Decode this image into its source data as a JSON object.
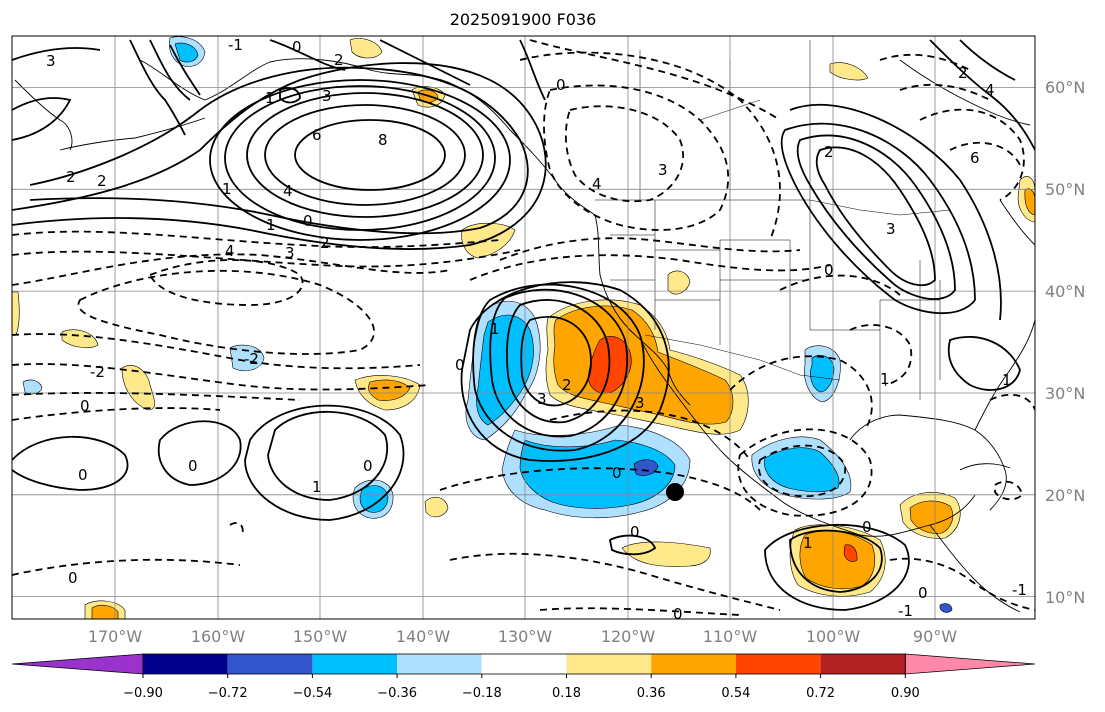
{
  "title": "2025091900 F036",
  "lat_labels": [
    "60°N",
    "50°N",
    "40°N",
    "30°N",
    "20°N",
    "10°N"
  ],
  "lon_labels": [
    "170°W",
    "160°W",
    "150°W",
    "140°W",
    "130°W",
    "120°W",
    "110°W",
    "100°W",
    "90°W"
  ],
  "colorbar": {
    "colors": [
      "#9933cc",
      "#00008b",
      "#3355cc",
      "#00bfff",
      "#b0e0ff",
      "#ffffff",
      "#ffe98a",
      "#ffa500",
      "#ff4500",
      "#b22222",
      "#ff88aa"
    ],
    "tick_labels": [
      "−0.90",
      "−0.72",
      "−0.54",
      "−0.36",
      "−0.18",
      "0.18",
      "0.36",
      "0.54",
      "0.72",
      "0.90"
    ]
  },
  "contour_labels": {
    "l1": "3",
    "l2": "-1",
    "l3": "0",
    "l4": "2",
    "l5": "1",
    "l6": "3",
    "l7": "6",
    "l8": "8",
    "l9": "4",
    "l10": "2",
    "l11": "2",
    "l12": "1",
    "l13": "0",
    "l14": "1",
    "l15": "2",
    "l16": "4",
    "l17": "3",
    "l18": "-2",
    "l19": "-2",
    "l20": "0",
    "l21": "0",
    "l22": "0",
    "l23": "1",
    "l24": "0",
    "l25": "1",
    "l26": "3",
    "l27": "2",
    "l28": "0",
    "l29": "3",
    "l30": "0",
    "l31": "0",
    "l32": "0",
    "l33": "0",
    "l34": "4",
    "l35": "3",
    "l36": "0",
    "l37": "3",
    "l38": "2",
    "l39": "6",
    "l40": "2",
    "l41": "4",
    "l42": "1",
    "l43": "1",
    "l44": "0",
    "l45": "1",
    "l46": "0",
    "l47": "-1",
    "l48": "0",
    "l49": "-1"
  }
}
